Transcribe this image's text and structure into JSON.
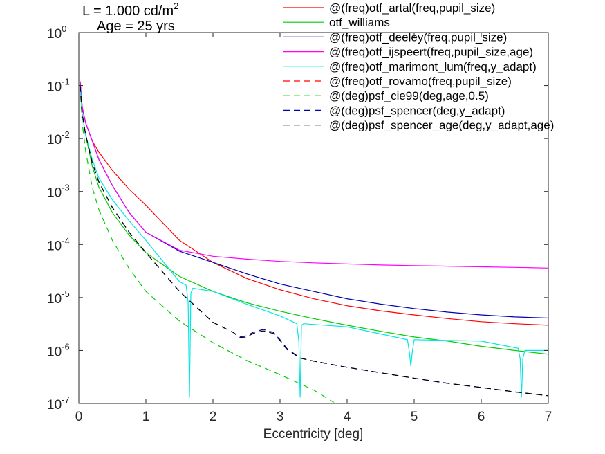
{
  "chart_data": {
    "type": "line",
    "title_line1": "L = 1.000 cd/m",
    "title_line1_sup": "2",
    "title_line2": "Age = 25 yrs",
    "xlabel": "Eccentricity [deg]",
    "ylabel": "",
    "xlim": [
      0,
      7
    ],
    "ylim": [
      1e-07,
      1
    ],
    "yscale": "log",
    "grid": false,
    "legend_position": "top-right",
    "x_ticks": [
      "0",
      "1",
      "2",
      "3",
      "4",
      "5",
      "6",
      "7"
    ],
    "y_ticks": [
      {
        "base": "10",
        "exp": "0"
      },
      {
        "base": "10",
        "exp": "-1"
      },
      {
        "base": "10",
        "exp": "-2"
      },
      {
        "base": "10",
        "exp": "-3"
      },
      {
        "base": "10",
        "exp": "-4"
      },
      {
        "base": "10",
        "exp": "-5"
      },
      {
        "base": "10",
        "exp": "-6"
      },
      {
        "base": "10",
        "exp": "-7"
      }
    ],
    "series": [
      {
        "name": "@(freq)otf_artal(freq,pupil_size)",
        "color": "#ff0000",
        "dash": "solid",
        "x": [
          0.02,
          0.05,
          0.1,
          0.2,
          0.3,
          0.5,
          0.75,
          1.0,
          1.5,
          2,
          2.5,
          3,
          3.5,
          4,
          4.5,
          5,
          5.5,
          6,
          6.5,
          7
        ],
        "y": [
          0.12,
          0.04,
          0.02,
          0.009,
          0.0055,
          0.0025,
          0.0011,
          0.00055,
          0.00012,
          4.6e-05,
          2.3e-05,
          1.4e-05,
          9.5e-06,
          7e-06,
          5.6e-06,
          4.7e-06,
          4e-06,
          3.5e-06,
          3.2e-06,
          3e-06
        ]
      },
      {
        "name": "otf_williams",
        "color": "#00cc00",
        "dash": "solid",
        "x": [
          0.02,
          0.05,
          0.1,
          0.2,
          0.3,
          0.5,
          0.75,
          1.0,
          1.5,
          2,
          2.5,
          3,
          3.5,
          4,
          4.5,
          5,
          5.5,
          6,
          6.5,
          7
        ],
        "y": [
          0.1,
          0.03,
          0.012,
          0.003,
          0.0012,
          0.0004,
          0.00015,
          7e-05,
          2.5e-05,
          1.3e-05,
          8e-06,
          5.5e-06,
          4e-06,
          3e-06,
          2.3e-06,
          1.8e-06,
          1.5e-06,
          1.2e-06,
          1e-06,
          8.5e-07
        ]
      },
      {
        "name": "@(freq)otf_deeley(freq,pupil_size)",
        "color": "#0000b0",
        "dash": "solid",
        "x": [
          0.02,
          0.05,
          0.1,
          0.2,
          0.3,
          0.5,
          0.75,
          1.0,
          1.5,
          2,
          2.5,
          3,
          3.5,
          4,
          4.5,
          5,
          5.5,
          6,
          6.5,
          7
        ],
        "y": [
          0.12,
          0.04,
          0.02,
          0.009,
          0.004,
          0.0013,
          0.0004,
          0.00017,
          7.5e-05,
          4.6e-05,
          2.8e-05,
          1.8e-05,
          1.3e-05,
          9.5e-06,
          7.5e-06,
          6.2e-06,
          5.3e-06,
          4.7e-06,
          4.3e-06,
          4.1e-06
        ]
      },
      {
        "name": "@(freq)otf_ijspeert(freq,pupil_size,age)",
        "color": "#ff00ff",
        "dash": "solid",
        "x": [
          0.02,
          0.05,
          0.1,
          0.2,
          0.3,
          0.5,
          0.75,
          1.0,
          1.5,
          2,
          2.5,
          3,
          3.5,
          4,
          4.5,
          5,
          5.5,
          6,
          6.5,
          7
        ],
        "y": [
          0.12,
          0.04,
          0.02,
          0.009,
          0.004,
          0.0013,
          0.0004,
          0.00017,
          7.8e-05,
          6e-05,
          5.3e-05,
          4.8e-05,
          4.5e-05,
          4.3e-05,
          4.1e-05,
          4e-05,
          3.9e-05,
          3.8e-05,
          3.7e-05,
          3.6e-05
        ]
      },
      {
        "name": "@(freq)otf_marimont_lum(freq,y_adapt)",
        "color": "#00e6e6",
        "dash": "solid",
        "x": [
          0.02,
          0.05,
          0.1,
          0.2,
          0.3,
          0.5,
          0.75,
          1.0,
          1.5,
          1.6,
          1.63,
          1.65,
          1.67,
          1.7,
          2.0,
          2.5,
          3.0,
          3.25,
          3.28,
          3.3,
          3.32,
          3.35,
          4.0,
          4.9,
          4.93,
          4.95,
          4.97,
          5.0,
          6.0,
          6.55,
          6.58,
          6.6,
          6.62,
          6.65,
          7.0
        ],
        "y": [
          0.1,
          0.03,
          0.012,
          0.004,
          0.0018,
          0.0007,
          0.00028,
          0.00012,
          2e-05,
          1.7e-05,
          8e-06,
          1.3e-07,
          1.2e-05,
          1.5e-05,
          1.3e-05,
          7.5e-06,
          4.5e-06,
          3.2e-06,
          1.5e-06,
          1.3e-07,
          3e-06,
          3.2e-06,
          2.8e-06,
          1.6e-06,
          9e-07,
          5e-07,
          9e-07,
          1.6e-06,
          1.5e-06,
          1.1e-06,
          7e-07,
          1.3e-07,
          7e-07,
          1e-06,
          1e-06
        ]
      },
      {
        "name": "@(freq)otf_rovamo(freq,pupil_size)",
        "color": "#ff0000",
        "dash": "dashed",
        "x": [],
        "y": []
      },
      {
        "name": "@(deg)psf_cie99(deg,age,0.5)",
        "color": "#00cc00",
        "dash": "dashed",
        "x": [
          0.02,
          0.05,
          0.1,
          0.2,
          0.3,
          0.5,
          0.75,
          1.0,
          1.5,
          2,
          2.5,
          3,
          3.5,
          3.8
        ],
        "y": [
          0.1,
          0.02,
          0.006,
          0.0012,
          0.00045,
          0.00012,
          3.5e-05,
          1.3e-05,
          3.6e-06,
          1.4e-06,
          6.5e-07,
          3.5e-07,
          1.8e-07,
          1.05e-07
        ]
      },
      {
        "name": "@(deg)psf_spencer(deg,y_adapt)",
        "color": "#0000b0",
        "dash": "dashed",
        "x": [
          0.02,
          0.05,
          0.1,
          0.2,
          0.3,
          0.5,
          0.75,
          1.0,
          1.5,
          2.0,
          2.3,
          2.4,
          2.5,
          2.6,
          2.75,
          2.9,
          3.0,
          3.1,
          3.3,
          3.5,
          4,
          4.5,
          5,
          5.5,
          6,
          6.5,
          7
        ],
        "y": [
          0.1,
          0.03,
          0.012,
          0.0035,
          0.0015,
          0.0005,
          0.00017,
          7e-05,
          1.3e-05,
          3.4e-06,
          2.2e-06,
          1.8e-06,
          1.9e-06,
          2.2e-06,
          2.5e-06,
          2.2e-06,
          1.6e-06,
          1.1e-06,
          7.2e-07,
          6.3e-07,
          4.8e-07,
          3.8e-07,
          3e-07,
          2.4e-07,
          2e-07,
          1.65e-07,
          1.4e-07
        ]
      },
      {
        "name": "@(deg)psf_spencer_age(deg,y_adapt,age)",
        "color": "#000000",
        "dash": "dashed",
        "x": [
          0.02,
          0.05,
          0.1,
          0.2,
          0.3,
          0.5,
          0.75,
          1.0,
          1.5,
          2.0,
          2.3,
          2.4,
          2.5,
          2.6,
          2.75,
          2.9,
          3.0,
          3.1,
          3.3,
          3.5,
          4,
          4.5,
          5,
          5.5,
          6,
          6.5,
          7
        ],
        "y": [
          0.1,
          0.03,
          0.012,
          0.0035,
          0.0015,
          0.0005,
          0.00017,
          7e-05,
          1.3e-05,
          3.4e-06,
          2.2e-06,
          1.75e-06,
          1.8e-06,
          2.1e-06,
          2.35e-06,
          2.1e-06,
          1.55e-06,
          1.05e-06,
          7.2e-07,
          6.3e-07,
          4.8e-07,
          3.8e-07,
          3e-07,
          2.4e-07,
          2e-07,
          1.65e-07,
          1.4e-07
        ]
      }
    ]
  }
}
